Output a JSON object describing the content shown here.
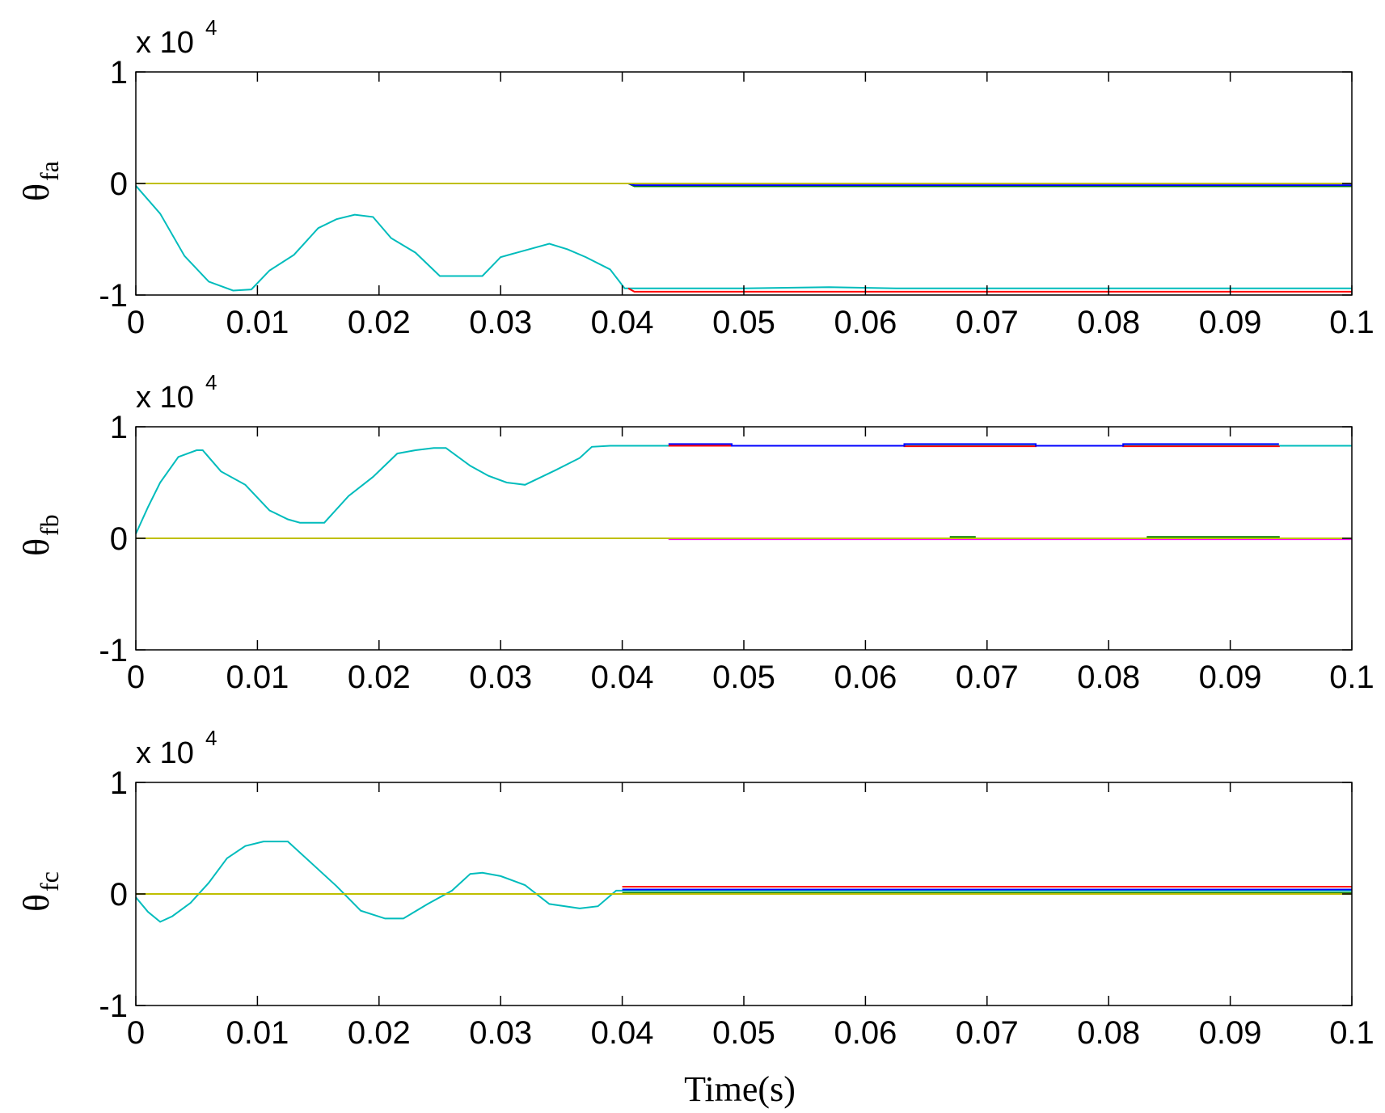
{
  "chart_data": [
    {
      "type": "line",
      "ylabel": "θ",
      "ylabel_sub": "fa",
      "exponent_label": "x 10",
      "exponent_power": "4",
      "xlim": [
        0,
        0.1
      ],
      "ylim": [
        -10000,
        10000
      ],
      "x_ticks": [
        "0",
        "0.01",
        "0.02",
        "0.03",
        "0.04",
        "0.05",
        "0.06",
        "0.07",
        "0.08",
        "0.09",
        "0.1"
      ],
      "y_ticks": [
        "1",
        "0",
        "-1"
      ],
      "series": [
        {
          "color": "#00bcbc",
          "x": [
            0,
            0.002,
            0.004,
            0.006,
            0.008,
            0.0095,
            0.011,
            0.013,
            0.015,
            0.0165,
            0.018,
            0.0195,
            0.021,
            0.023,
            0.025,
            0.027,
            0.0285,
            0.03,
            0.032,
            0.034,
            0.0355,
            0.037,
            0.039,
            0.0402,
            0.05,
            0.057,
            0.0625,
            0.1
          ],
          "y": [
            -200,
            -2700,
            -6500,
            -8800,
            -9600,
            -9500,
            -7800,
            -6400,
            -4000,
            -3200,
            -2800,
            -3000,
            -4900,
            -6200,
            -8300,
            -8300,
            -8300,
            -6600,
            -6000,
            -5400,
            -5900,
            -6600,
            -7700,
            -9400,
            -9400,
            -9300,
            -9400,
            -9400
          ]
        },
        {
          "color": "#ff0000",
          "x": [
            0.0405,
            0.041,
            0.1
          ],
          "y": [
            -9400,
            -9700,
            -9700
          ]
        },
        {
          "color": "#008000",
          "x": [
            0.0405,
            0.041,
            0.1
          ],
          "y": [
            0,
            -250,
            -250
          ]
        },
        {
          "color": "#0000ff",
          "x": [
            0.0405,
            0.041,
            0.1
          ],
          "y": [
            0,
            -150,
            -150
          ]
        },
        {
          "color": "#bfbf00",
          "x": [
            0,
            0.1
          ],
          "y": [
            0,
            0
          ]
        }
      ]
    },
    {
      "type": "line",
      "ylabel": "θ",
      "ylabel_sub": "fb",
      "exponent_label": "x 10",
      "exponent_power": "4",
      "xlim": [
        0,
        0.1
      ],
      "ylim": [
        -10000,
        10000
      ],
      "x_ticks": [
        "0",
        "0.01",
        "0.02",
        "0.03",
        "0.04",
        "0.05",
        "0.06",
        "0.07",
        "0.08",
        "0.09",
        "0.1"
      ],
      "y_ticks": [
        "1",
        "0",
        "-1"
      ],
      "series": [
        {
          "color": "#00bcbc",
          "x": [
            0,
            0.001,
            0.002,
            0.0035,
            0.005,
            0.0055,
            0.007,
            0.009,
            0.011,
            0.0125,
            0.0135,
            0.0155,
            0.0175,
            0.0195,
            0.0215,
            0.023,
            0.0245,
            0.0255,
            0.0275,
            0.029,
            0.0305,
            0.032,
            0.0345,
            0.0365,
            0.0375,
            0.039,
            0.1
          ],
          "y": [
            400,
            2800,
            5000,
            7300,
            7900,
            7900,
            6000,
            4800,
            2500,
            1700,
            1400,
            1400,
            3800,
            5500,
            7600,
            7900,
            8100,
            8100,
            6500,
            5600,
            5000,
            4800,
            6100,
            7200,
            8200,
            8300,
            8300
          ]
        },
        {
          "color": "#ff0000",
          "x": [
            0.0438,
            0.049,
            0.049,
            0.0632,
            0.0632,
            0.074,
            0.074,
            0.0812,
            0.0812,
            0.094,
            0.094
          ],
          "y": [
            8300,
            8300,
            8300,
            8300,
            8250,
            8250,
            8300,
            8300,
            8250,
            8250,
            8300
          ]
        },
        {
          "color": "#0000ff",
          "x": [
            0.0438,
            0.049,
            0.049,
            0.0632,
            0.0632,
            0.074,
            0.074,
            0.0812,
            0.0812,
            0.094
          ],
          "y": [
            8450,
            8450,
            8300,
            8300,
            8450,
            8450,
            8300,
            8300,
            8450,
            8450
          ]
        },
        {
          "color": "#ff00ff",
          "x": [
            0.0438,
            0.1
          ],
          "y": [
            -80,
            -80
          ]
        },
        {
          "color": "#008000",
          "x": [
            0.0438,
            0.067,
            0.067,
            0.069,
            0.069,
            0.0832,
            0.0832,
            0.094,
            0.094
          ],
          "y": [
            0,
            0,
            120,
            120,
            0,
            0,
            120,
            120,
            0
          ]
        },
        {
          "color": "#bfbf00",
          "x": [
            0,
            0.1
          ],
          "y": [
            0,
            0
          ]
        }
      ]
    },
    {
      "type": "line",
      "ylabel": "θ",
      "ylabel_sub": "fc",
      "exponent_label": "x 10",
      "exponent_power": "4",
      "xlim": [
        0,
        0.1
      ],
      "ylim": [
        -10000,
        10000
      ],
      "x_ticks": [
        "0",
        "0.01",
        "0.02",
        "0.03",
        "0.04",
        "0.05",
        "0.06",
        "0.07",
        "0.08",
        "0.09",
        "0.1"
      ],
      "y_ticks": [
        "1",
        "0",
        "-1"
      ],
      "series": [
        {
          "color": "#00bcbc",
          "x": [
            0,
            0.001,
            0.002,
            0.003,
            0.0045,
            0.006,
            0.0075,
            0.009,
            0.0105,
            0.0125,
            0.0145,
            0.0165,
            0.0185,
            0.0205,
            0.022,
            0.024,
            0.026,
            0.0275,
            0.0285,
            0.03,
            0.032,
            0.034,
            0.0365,
            0.038,
            0.0395,
            0.1
          ],
          "y": [
            -300,
            -1600,
            -2500,
            -2000,
            -800,
            1000,
            3200,
            4300,
            4700,
            4700,
            2700,
            700,
            -1500,
            -2200,
            -2200,
            -900,
            300,
            1800,
            1900,
            1600,
            800,
            -900,
            -1300,
            -1100,
            300,
            300
          ]
        },
        {
          "color": "#ff0000",
          "x": [
            0.04,
            0.1
          ],
          "y": [
            650,
            650
          ]
        },
        {
          "color": "#0000ff",
          "x": [
            0.04,
            0.1
          ],
          "y": [
            400,
            400
          ]
        },
        {
          "color": "#008000",
          "x": [
            0.04,
            0.1
          ],
          "y": [
            100,
            100
          ]
        },
        {
          "color": "#bfbf00",
          "x": [
            0,
            0.1
          ],
          "y": [
            0,
            0
          ]
        }
      ]
    }
  ],
  "shared_xlabel": "Time(s)"
}
